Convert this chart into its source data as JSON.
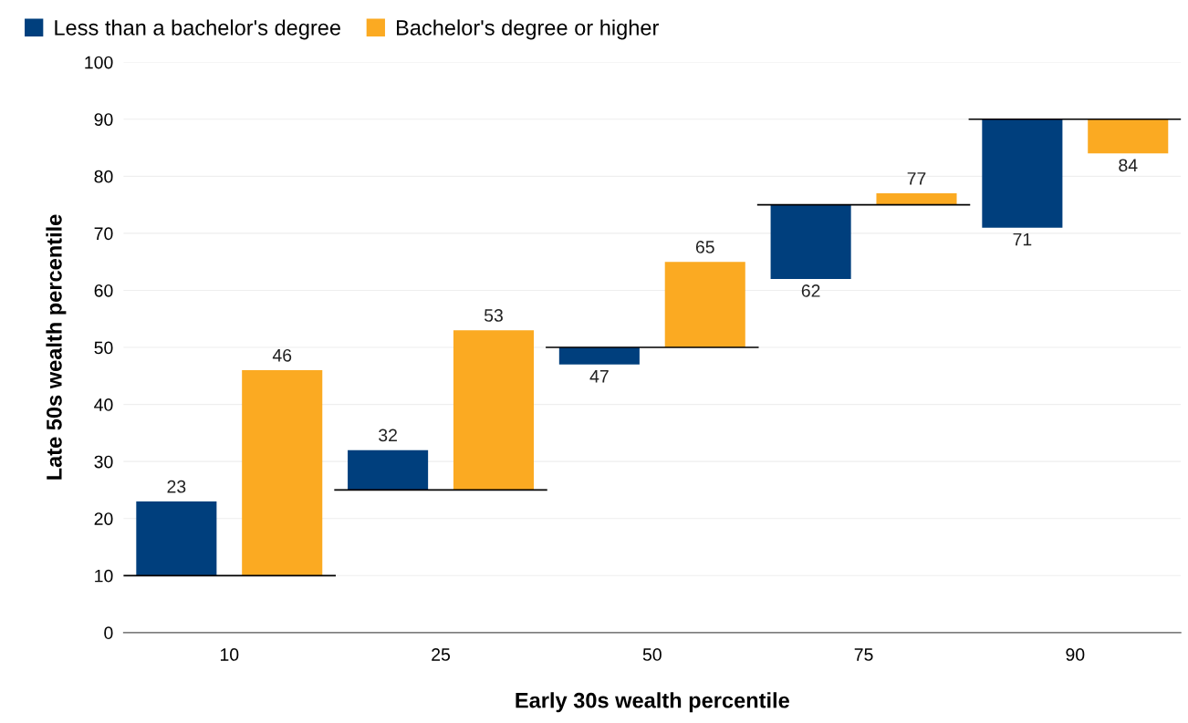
{
  "chart_data": {
    "type": "bar",
    "xlabel": "Early 30s wealth percentile",
    "ylabel": "Late 50s wealth percentile",
    "categories": [
      "10",
      "25",
      "50",
      "75",
      "90"
    ],
    "series": [
      {
        "name": "Less than a bachelor's degree",
        "color": "#003f7d",
        "base": [
          10,
          25,
          50,
          75,
          90
        ],
        "values": [
          13,
          7,
          -3,
          -13,
          -19
        ],
        "value_labels": [
          "23",
          "32",
          "47",
          "62",
          "71"
        ]
      },
      {
        "name": "Bachelor's degree or higher",
        "color": "#fbaa22",
        "base": [
          10,
          25,
          50,
          75,
          90
        ],
        "values": [
          36,
          28,
          15,
          2,
          -6
        ],
        "value_labels": [
          "46",
          "53",
          "65",
          "77",
          "84"
        ]
      }
    ],
    "ref_lines": [
      {
        "axis": "y",
        "value": 10,
        "color": "#000000"
      },
      {
        "axis": "y",
        "value": 25,
        "color": "#000000"
      },
      {
        "axis": "y",
        "value": 50,
        "color": "#000000"
      },
      {
        "axis": "y",
        "value": 75,
        "color": "#000000"
      },
      {
        "axis": "y",
        "value": 90,
        "color": "#000000"
      }
    ],
    "ylim": [
      0,
      100
    ],
    "yticks": [
      0,
      10,
      20,
      30,
      40,
      50,
      60,
      70,
      80,
      90,
      100
    ],
    "grid": "y",
    "legend": "top left"
  }
}
